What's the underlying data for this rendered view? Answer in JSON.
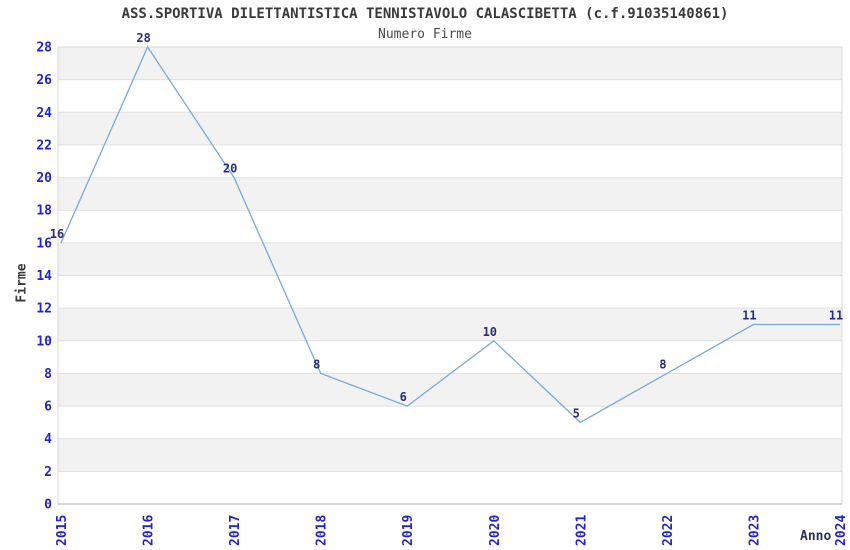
{
  "header": {
    "title": "ASS.SPORTIVA DILETTANTISTICA TENNISTAVOLO CALASCIBETTA (c.f.91035140861)",
    "subtitle": "Numero Firme"
  },
  "chart_data": {
    "type": "line",
    "title": "ASS.SPORTIVA DILETTANTISTICA TENNISTAVOLO CALASCIBETTA (c.f.91035140861)",
    "subtitle": "Numero Firme",
    "xlabel": "Anno",
    "ylabel": "Firme",
    "x": [
      2015,
      2016,
      2017,
      2018,
      2019,
      2020,
      2021,
      2022,
      2023,
      2024
    ],
    "values": [
      16,
      28,
      20,
      8,
      6,
      10,
      5,
      8,
      11,
      11
    ],
    "ylim": [
      0,
      28
    ],
    "ytick_step": 2,
    "grid": "horizontal-bands-alternating",
    "legend": "none",
    "colors": {
      "line": "#7aa9dc",
      "tick_label": "#2323cc",
      "data_label": "#2b2b7a",
      "band_gray": "#f2f2f2",
      "gridline": "#e0e0e0",
      "plot_border": "#d9d9d9",
      "axis_line": "#a8a8a8",
      "title_text": "#3a3a3a",
      "background": "#ffffff"
    }
  }
}
